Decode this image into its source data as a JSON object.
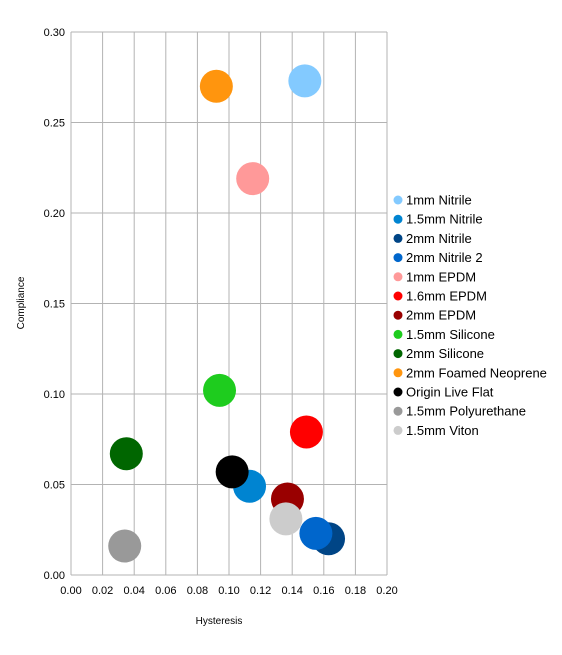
{
  "chart_data": {
    "type": "scatter",
    "xlabel": "Hysteresis",
    "ylabel": "Compliance",
    "xlim": [
      0,
      0.2
    ],
    "ylim": [
      0,
      0.3
    ],
    "xticks": [
      "0.00",
      "0.02",
      "0.04",
      "0.06",
      "0.08",
      "0.10",
      "0.12",
      "0.14",
      "0.16",
      "0.18",
      "0.20"
    ],
    "yticks": [
      "0.00",
      "0.05",
      "0.10",
      "0.15",
      "0.20",
      "0.25",
      "0.30"
    ],
    "grid": true,
    "legend_position": "right",
    "series": [
      {
        "name": "1mm Nitrile",
        "color": "#83caff",
        "x": [
          0.148
        ],
        "y": [
          0.273
        ]
      },
      {
        "name": "1.5mm Nitrile",
        "color": "#0084d1",
        "x": [
          0.113
        ],
        "y": [
          0.049
        ]
      },
      {
        "name": "2mm Nitrile",
        "color": "#004586",
        "x": [
          0.163
        ],
        "y": [
          0.02
        ]
      },
      {
        "name": "2mm Nitrile 2",
        "color": "#0066cc",
        "x": [
          0.155
        ],
        "y": [
          0.023
        ]
      },
      {
        "name": "1mm EPDM",
        "color": "#ff9999",
        "x": [
          0.115
        ],
        "y": [
          0.219
        ]
      },
      {
        "name": "1.6mm EPDM",
        "color": "#ff0000",
        "x": [
          0.149
        ],
        "y": [
          0.079
        ]
      },
      {
        "name": "2mm EPDM",
        "color": "#990000",
        "x": [
          0.137
        ],
        "y": [
          0.042
        ]
      },
      {
        "name": "1.5mm Silicone",
        "color": "#1ecc1e",
        "x": [
          0.094
        ],
        "y": [
          0.102
        ]
      },
      {
        "name": "2mm Silicone",
        "color": "#006600",
        "x": [
          0.035
        ],
        "y": [
          0.067
        ]
      },
      {
        "name": "2mm Foamed Neoprene",
        "color": "#ff950e",
        "x": [
          0.092
        ],
        "y": [
          0.27
        ]
      },
      {
        "name": "Origin Live Flat",
        "color": "#000000",
        "x": [
          0.102
        ],
        "y": [
          0.057
        ]
      },
      {
        "name": "1.5mm Polyurethane",
        "color": "#999999",
        "x": [
          0.034
        ],
        "y": [
          0.016
        ]
      },
      {
        "name": "1.5mm Viton",
        "color": "#cccccc",
        "x": [
          0.136
        ],
        "y": [
          0.031
        ]
      }
    ]
  }
}
